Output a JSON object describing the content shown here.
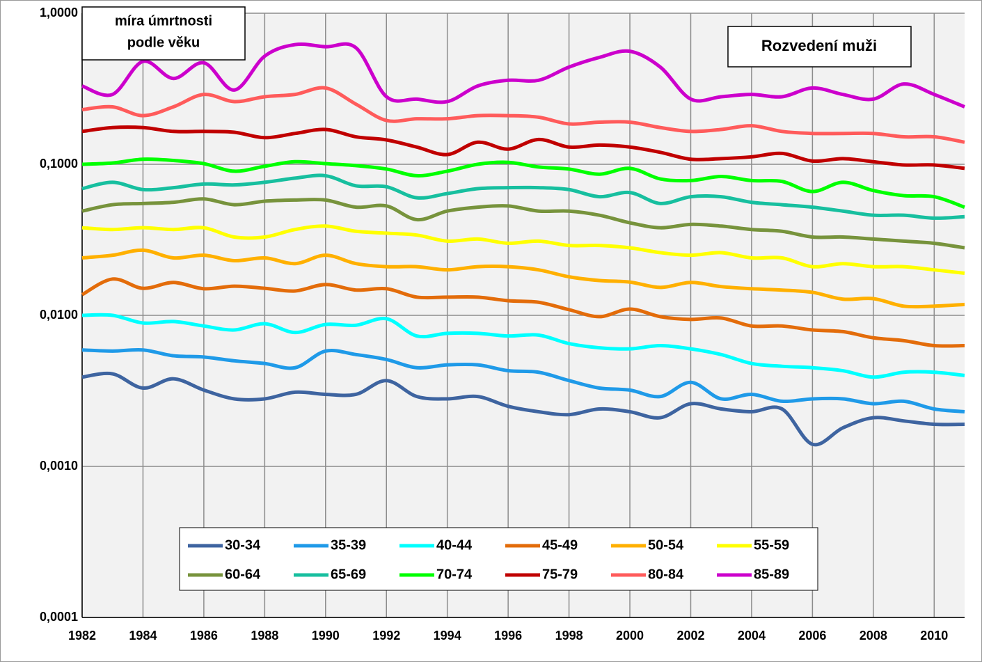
{
  "chart_data": {
    "type": "line",
    "title": "Rozvedení muži",
    "ylabel": [
      "míra úmrtnosti",
      "podle věku"
    ],
    "log_y": true,
    "grid": true,
    "x": [
      1982,
      1983,
      1984,
      1985,
      1986,
      1987,
      1988,
      1989,
      1990,
      1991,
      1992,
      1993,
      1994,
      1995,
      1996,
      1997,
      1998,
      1999,
      2000,
      2001,
      2002,
      2003,
      2004,
      2005,
      2006,
      2007,
      2008,
      2009,
      2010,
      2011
    ],
    "xlim": [
      1982,
      2011
    ],
    "xticks": [
      1982,
      1984,
      1986,
      1988,
      1990,
      1992,
      1994,
      1996,
      1998,
      2000,
      2002,
      2004,
      2006,
      2008,
      2010
    ],
    "ylim": [
      0.0001,
      1
    ],
    "yticks": [
      {
        "value": 0.0001,
        "label": "0,0001"
      },
      {
        "value": 0.001,
        "label": "0,0010"
      },
      {
        "value": 0.01,
        "label": "0,0100"
      },
      {
        "value": 0.1,
        "label": "0,1000"
      },
      {
        "value": 1,
        "label": "1,0000"
      }
    ],
    "series": [
      {
        "name": "30-34",
        "color": "#3e64a0",
        "values": [
          0.0039,
          0.0041,
          0.0033,
          0.0038,
          0.0032,
          0.0028,
          0.0028,
          0.0031,
          0.003,
          0.003,
          0.0037,
          0.0029,
          0.0028,
          0.0029,
          0.0025,
          0.0023,
          0.0022,
          0.0024,
          0.0023,
          0.0021,
          0.0026,
          0.0024,
          0.0023,
          0.0024,
          0.0014,
          0.0018,
          0.0021,
          0.002,
          0.0019,
          0.0019
        ]
      },
      {
        "name": "35-39",
        "color": "#1f9ae8",
        "values": [
          0.0059,
          0.0058,
          0.0059,
          0.0054,
          0.0053,
          0.005,
          0.0048,
          0.0045,
          0.0058,
          0.0055,
          0.0051,
          0.0045,
          0.0047,
          0.0047,
          0.0043,
          0.0042,
          0.0037,
          0.0033,
          0.0032,
          0.0029,
          0.0036,
          0.0028,
          0.003,
          0.0027,
          0.0028,
          0.0028,
          0.0026,
          0.0027,
          0.0024,
          0.0023
        ]
      },
      {
        "name": "40-44",
        "color": "#00ffff",
        "values": [
          0.01,
          0.01,
          0.0089,
          0.0091,
          0.0085,
          0.008,
          0.0088,
          0.0077,
          0.0087,
          0.0086,
          0.0095,
          0.0073,
          0.0076,
          0.0076,
          0.0073,
          0.0074,
          0.0065,
          0.0061,
          0.006,
          0.0063,
          0.006,
          0.0055,
          0.0048,
          0.0046,
          0.0045,
          0.0043,
          0.0039,
          0.0042,
          0.0042,
          0.004
        ]
      },
      {
        "name": "45-49",
        "color": "#e36c0a",
        "values": [
          0.0137,
          0.0174,
          0.0151,
          0.0165,
          0.015,
          0.0156,
          0.0151,
          0.0145,
          0.016,
          0.0147,
          0.015,
          0.0132,
          0.0132,
          0.0132,
          0.0125,
          0.0122,
          0.0109,
          0.0098,
          0.011,
          0.0098,
          0.0094,
          0.0096,
          0.0085,
          0.0085,
          0.008,
          0.0078,
          0.0071,
          0.0068,
          0.0063,
          0.0063
        ]
      },
      {
        "name": "50-54",
        "color": "#ffb000",
        "values": [
          0.024,
          0.025,
          0.027,
          0.024,
          0.025,
          0.023,
          0.024,
          0.022,
          0.025,
          0.022,
          0.021,
          0.021,
          0.02,
          0.021,
          0.021,
          0.02,
          0.018,
          0.017,
          0.0166,
          0.0153,
          0.0165,
          0.0155,
          0.015,
          0.0147,
          0.0142,
          0.0128,
          0.0129,
          0.0115,
          0.0115,
          0.0118
        ]
      },
      {
        "name": "55-59",
        "color": "#ffff00",
        "values": [
          0.038,
          0.037,
          0.038,
          0.037,
          0.038,
          0.033,
          0.033,
          0.037,
          0.039,
          0.036,
          0.035,
          0.034,
          0.031,
          0.032,
          0.03,
          0.031,
          0.029,
          0.029,
          0.028,
          0.026,
          0.025,
          0.026,
          0.024,
          0.024,
          0.021,
          0.022,
          0.021,
          0.021,
          0.02,
          0.019
        ]
      },
      {
        "name": "60-64",
        "color": "#77933c",
        "values": [
          0.049,
          0.054,
          0.055,
          0.056,
          0.059,
          0.054,
          0.057,
          0.058,
          0.058,
          0.052,
          0.053,
          0.043,
          0.049,
          0.052,
          0.053,
          0.049,
          0.049,
          0.046,
          0.041,
          0.038,
          0.04,
          0.039,
          0.037,
          0.036,
          0.033,
          0.033,
          0.032,
          0.031,
          0.03,
          0.028
        ]
      },
      {
        "name": "65-69",
        "color": "#17bf9f",
        "values": [
          0.069,
          0.076,
          0.068,
          0.07,
          0.074,
          0.073,
          0.076,
          0.081,
          0.084,
          0.072,
          0.071,
          0.06,
          0.064,
          0.069,
          0.07,
          0.07,
          0.068,
          0.061,
          0.065,
          0.055,
          0.061,
          0.061,
          0.056,
          0.054,
          0.052,
          0.049,
          0.046,
          0.046,
          0.044,
          0.045
        ]
      },
      {
        "name": "70-74",
        "color": "#00ff00",
        "values": [
          0.1,
          0.102,
          0.108,
          0.106,
          0.101,
          0.09,
          0.097,
          0.104,
          0.101,
          0.098,
          0.093,
          0.084,
          0.09,
          0.1,
          0.103,
          0.096,
          0.093,
          0.086,
          0.094,
          0.08,
          0.078,
          0.083,
          0.078,
          0.077,
          0.066,
          0.076,
          0.067,
          0.062,
          0.061,
          0.052
        ]
      },
      {
        "name": "75-79",
        "color": "#c00000",
        "values": [
          0.165,
          0.175,
          0.175,
          0.165,
          0.165,
          0.163,
          0.15,
          0.16,
          0.17,
          0.152,
          0.145,
          0.13,
          0.116,
          0.14,
          0.126,
          0.146,
          0.13,
          0.134,
          0.13,
          0.12,
          0.108,
          0.109,
          0.112,
          0.118,
          0.105,
          0.109,
          0.104,
          0.099,
          0.099,
          0.094
        ]
      },
      {
        "name": "80-84",
        "color": "#ff5b5b",
        "values": [
          0.23,
          0.24,
          0.21,
          0.24,
          0.29,
          0.26,
          0.28,
          0.29,
          0.32,
          0.25,
          0.195,
          0.2,
          0.2,
          0.21,
          0.21,
          0.205,
          0.185,
          0.19,
          0.19,
          0.175,
          0.165,
          0.17,
          0.18,
          0.165,
          0.16,
          0.16,
          0.16,
          0.152,
          0.152,
          0.14
        ]
      },
      {
        "name": "85-89",
        "color": "#cc00cc",
        "values": [
          0.33,
          0.29,
          0.48,
          0.37,
          0.47,
          0.31,
          0.52,
          0.62,
          0.6,
          0.59,
          0.28,
          0.27,
          0.26,
          0.33,
          0.36,
          0.36,
          0.44,
          0.51,
          0.56,
          0.44,
          0.27,
          0.28,
          0.29,
          0.28,
          0.32,
          0.29,
          0.27,
          0.34,
          0.29,
          0.24
        ]
      }
    ]
  }
}
